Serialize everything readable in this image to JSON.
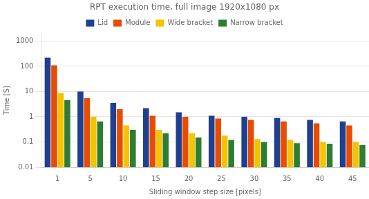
{
  "chart_data": {
    "type": "bar",
    "title": "RPT execution time, full image 1920x1080 px",
    "xlabel": "Sliding window step size [pixels]",
    "ylabel": "Time [S]",
    "categories": [
      1,
      5,
      10,
      15,
      20,
      25,
      30,
      35,
      40,
      45
    ],
    "series": [
      {
        "name": "Lid",
        "color": "#1f3f8f",
        "values": [
          220,
          10,
          3.5,
          2.2,
          1.5,
          1.1,
          1.0,
          0.9,
          0.75,
          0.65
        ]
      },
      {
        "name": "Module",
        "color": "#e84c00",
        "values": [
          110,
          5.5,
          2.0,
          1.1,
          1.0,
          0.85,
          0.75,
          0.65,
          0.55,
          0.45
        ]
      },
      {
        "name": "Wide bracket",
        "color": "#f5c400",
        "values": [
          8.5,
          1.0,
          0.45,
          0.3,
          0.22,
          0.18,
          0.13,
          0.12,
          0.1,
          0.1
        ]
      },
      {
        "name": "Narrow bracket",
        "color": "#2e7d32",
        "values": [
          4.5,
          0.65,
          0.3,
          0.22,
          0.15,
          0.12,
          0.1,
          0.09,
          0.085,
          0.075
        ]
      }
    ],
    "log": "y",
    "ylim": [
      0.01,
      2000
    ],
    "yticks": [
      0.01,
      0.1,
      1,
      10,
      100,
      1000
    ],
    "grid": "y",
    "legend": "top"
  }
}
